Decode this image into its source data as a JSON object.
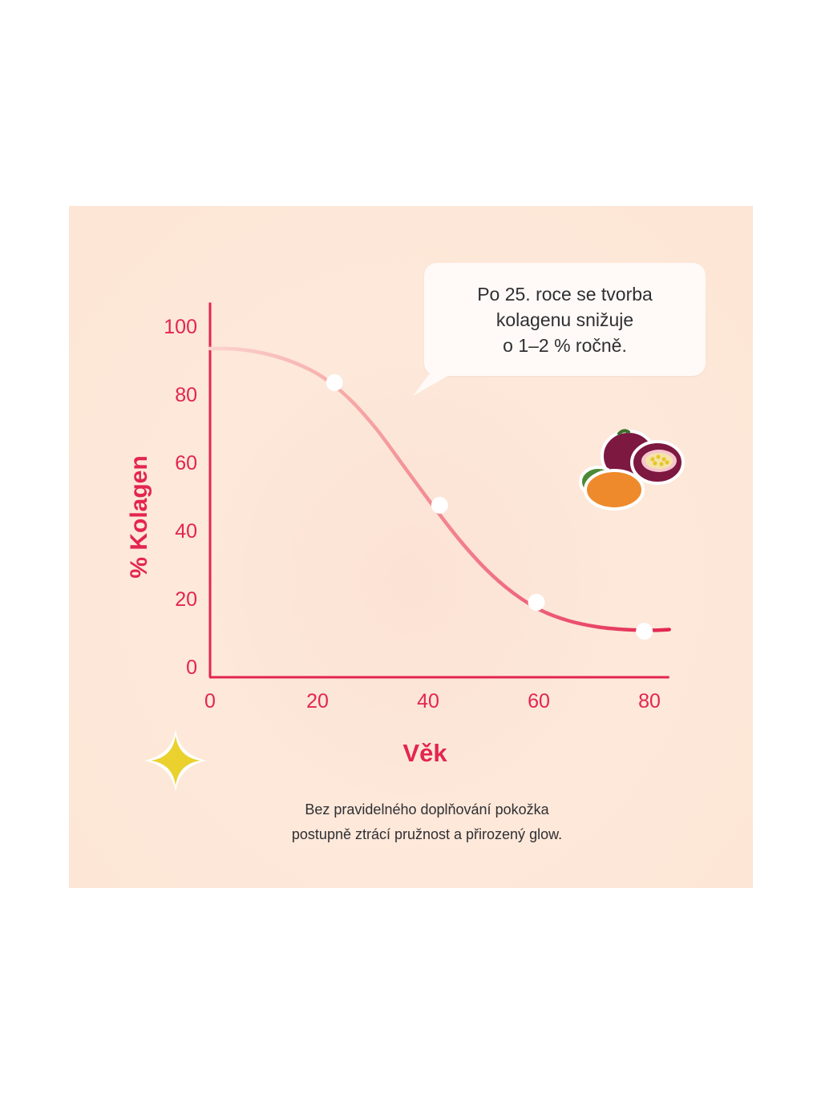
{
  "chart_data": {
    "type": "line",
    "ylabel": "% Kolagen",
    "xlabel": "Věk",
    "xlim": [
      0,
      83
    ],
    "ylim": [
      0,
      110
    ],
    "x_ticks": [
      0,
      20,
      40,
      60,
      80
    ],
    "y_ticks": [
      0,
      20,
      40,
      60,
      80,
      100
    ],
    "curve": [
      {
        "x": 0,
        "y": 96.5
      },
      {
        "x": 5,
        "y": 96.3
      },
      {
        "x": 10,
        "y": 95
      },
      {
        "x": 15,
        "y": 92.5
      },
      {
        "x": 20,
        "y": 88.5
      },
      {
        "x": 25,
        "y": 82
      },
      {
        "x": 30,
        "y": 73
      },
      {
        "x": 35,
        "y": 62
      },
      {
        "x": 40,
        "y": 51
      },
      {
        "x": 45,
        "y": 40.5
      },
      {
        "x": 50,
        "y": 31.5
      },
      {
        "x": 55,
        "y": 24.5
      },
      {
        "x": 60,
        "y": 19.5
      },
      {
        "x": 65,
        "y": 16.5
      },
      {
        "x": 70,
        "y": 14.8
      },
      {
        "x": 75,
        "y": 14
      },
      {
        "x": 80,
        "y": 13.8
      },
      {
        "x": 83,
        "y": 14
      }
    ],
    "highlighted_points": [
      {
        "x": 22.5,
        "y": 86.5
      },
      {
        "x": 41.5,
        "y": 50.5
      },
      {
        "x": 59,
        "y": 22
      },
      {
        "x": 78.5,
        "y": 13.5
      }
    ],
    "curve_color_start": "#f7b7b4",
    "curve_color_end": "#e3254f",
    "axis_color": "#e3254f",
    "label_color": "#e3254f"
  },
  "callout": {
    "lines": [
      "Po 25. roce se tvorba",
      "kolagenu snižuje",
      "o 1–2 % ročně."
    ]
  },
  "caption": {
    "lines": [
      "Bez pravidelného doplňování pokožka",
      "postupně ztrácí pružnost a přirozený glow."
    ]
  },
  "decorations": {
    "fruit": "passion-fruit-icon",
    "sparkle": "sparkle-icon"
  }
}
